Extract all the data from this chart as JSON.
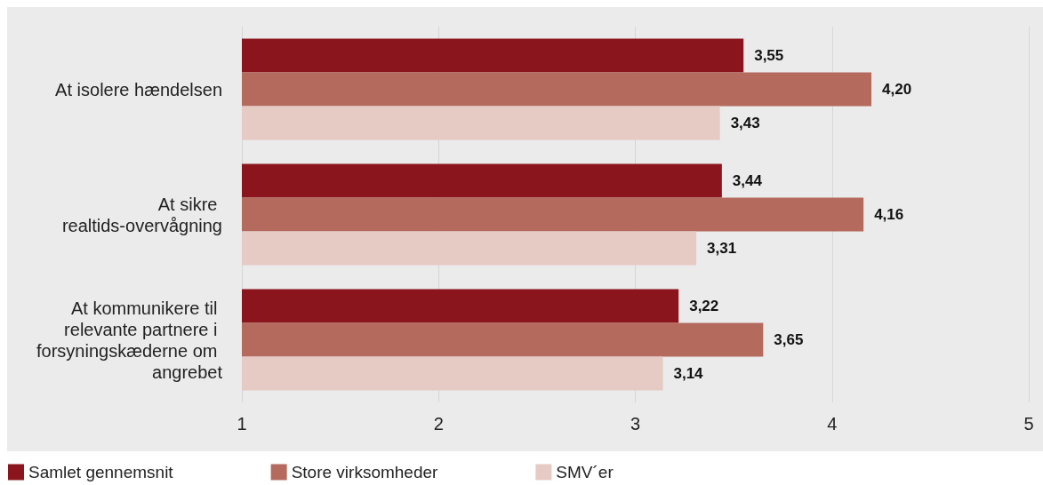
{
  "chart_data": {
    "type": "bar",
    "orientation": "horizontal",
    "categories": [
      "At isolere hændelsen",
      "At sikre realtids-overvågning",
      "At kommunikere til relevante partnere i forsyningskæderne om angrebet"
    ],
    "series": [
      {
        "name": "Samlet gennemsnit",
        "color": "#8b151c",
        "values": [
          3.55,
          3.44,
          3.22
        ],
        "value_labels": [
          "3,55",
          "3,44",
          "3,22"
        ]
      },
      {
        "name": "Store virksomheder",
        "color": "#b56a5e",
        "values": [
          4.2,
          4.16,
          3.65
        ],
        "value_labels": [
          "4,20",
          "4,16",
          "3,65"
        ]
      },
      {
        "name": "SMV´er",
        "color": "#e6cac4",
        "values": [
          3.43,
          3.31,
          3.14
        ],
        "value_labels": [
          "3,43",
          "3,31",
          "3,14"
        ]
      }
    ],
    "xlim": [
      1,
      5
    ],
    "xticks": [
      1,
      2,
      3,
      4,
      5
    ],
    "grid": "x",
    "legend": "bottom left"
  }
}
